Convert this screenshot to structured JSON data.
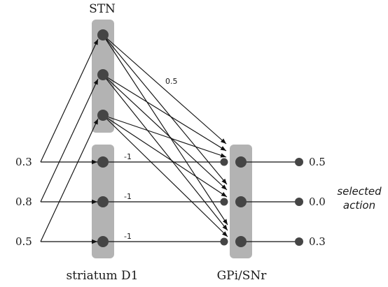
{
  "labels": {
    "stn": "STN",
    "striatum": "striatum D1",
    "gpi": "GPi/SNr",
    "selected_line1": "selected",
    "selected_line2": "action"
  },
  "inputs": [
    "0.3",
    "0.8",
    "0.5"
  ],
  "outputs": [
    "0.5",
    "0.0",
    "0.3"
  ],
  "weights": {
    "stn_to_gpi": "0.5",
    "inhibitory": [
      "-1",
      "-1",
      "-1"
    ]
  },
  "colors": {
    "box": "#b3b3b3",
    "node": "#454545",
    "line": "#111111"
  }
}
